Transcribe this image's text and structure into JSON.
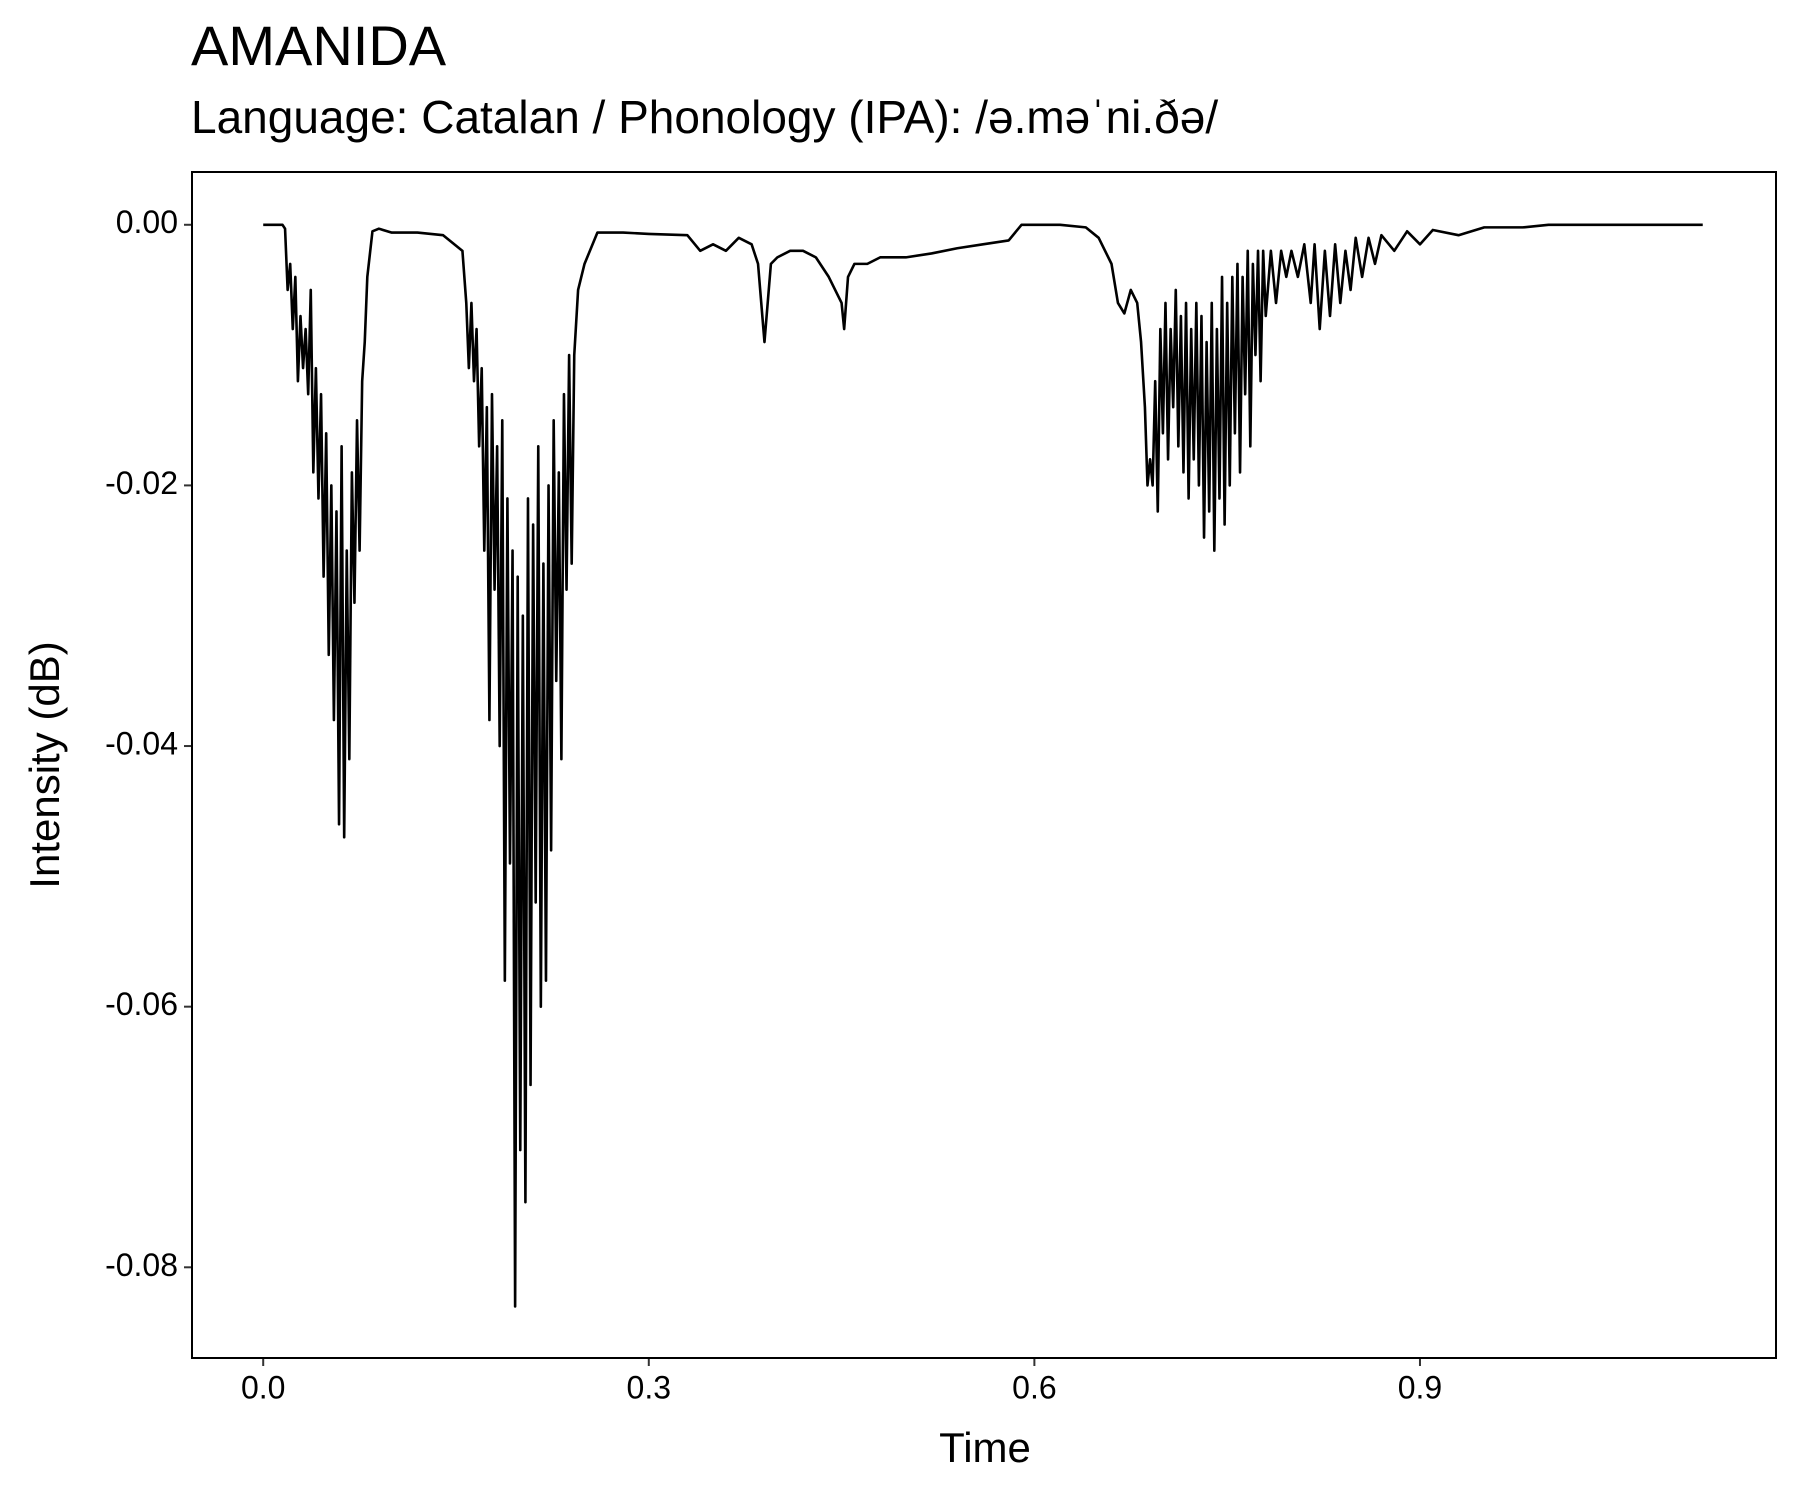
{
  "chart_data": {
    "type": "line",
    "title": "AMANIDA",
    "subtitle": "Language: Catalan / Phonology (IPA): /ə.məˈni.ðə/",
    "x_label": "Time",
    "y_label": "Intensity (dB)",
    "color": "#000000",
    "xlim": [
      -0.0554,
      1.177
    ],
    "ylim": [
      -0.08696,
      0.00405
    ],
    "xticks": [
      {
        "value": 0,
        "label": "0.0"
      },
      0.3,
      0.6,
      0.9
    ],
    "yticks": [
      {
        "value": 0,
        "label": "0.00"
      },
      {
        "value": -0.02,
        "label": "-0.02"
      },
      {
        "value": -0.04,
        "label": "-0.04"
      },
      {
        "value": -0.06,
        "label": "-0.06"
      },
      {
        "value": -0.08,
        "label": "-0.08"
      }
    ],
    "x": [
      0,
      0.015,
      0.017,
      0.019,
      0.021,
      0.023,
      0.025,
      0.027,
      0.029,
      0.031,
      0.033,
      0.035,
      0.037,
      0.039,
      0.041,
      0.043,
      0.045,
      0.047,
      0.049,
      0.051,
      0.053,
      0.055,
      0.057,
      0.059,
      0.061,
      0.063,
      0.065,
      0.067,
      0.069,
      0.071,
      0.073,
      0.075,
      0.077,
      0.079,
      0.081,
      0.085,
      0.09,
      0.1,
      0.12,
      0.14,
      0.155,
      0.158,
      0.16,
      0.162,
      0.164,
      0.166,
      0.168,
      0.17,
      0.172,
      0.174,
      0.176,
      0.178,
      0.18,
      0.182,
      0.184,
      0.186,
      0.188,
      0.19,
      0.192,
      0.194,
      0.196,
      0.198,
      0.2,
      0.202,
      0.204,
      0.206,
      0.208,
      0.21,
      0.212,
      0.214,
      0.216,
      0.218,
      0.22,
      0.222,
      0.224,
      0.226,
      0.228,
      0.23,
      0.232,
      0.234,
      0.236,
      0.238,
      0.24,
      0.242,
      0.245,
      0.25,
      0.26,
      0.28,
      0.3,
      0.33,
      0.34,
      0.35,
      0.36,
      0.37,
      0.38,
      0.385,
      0.39,
      0.395,
      0.4,
      0.41,
      0.42,
      0.43,
      0.44,
      0.45,
      0.452,
      0.455,
      0.46,
      0.47,
      0.48,
      0.5,
      0.52,
      0.54,
      0.56,
      0.58,
      0.59,
      0.62,
      0.64,
      0.65,
      0.66,
      0.665,
      0.67,
      0.675,
      0.68,
      0.683,
      0.686,
      0.688,
      0.69,
      0.692,
      0.694,
      0.696,
      0.698,
      0.7,
      0.702,
      0.704,
      0.706,
      0.708,
      0.71,
      0.712,
      0.714,
      0.716,
      0.718,
      0.72,
      0.722,
      0.724,
      0.726,
      0.728,
      0.73,
      0.732,
      0.734,
      0.736,
      0.738,
      0.74,
      0.742,
      0.744,
      0.746,
      0.748,
      0.75,
      0.752,
      0.754,
      0.756,
      0.758,
      0.76,
      0.762,
      0.764,
      0.766,
      0.768,
      0.77,
      0.772,
      0.774,
      0.776,
      0.778,
      0.78,
      0.784,
      0.788,
      0.792,
      0.796,
      0.8,
      0.805,
      0.81,
      0.815,
      0.818,
      0.822,
      0.826,
      0.83,
      0.834,
      0.838,
      0.842,
      0.846,
      0.85,
      0.855,
      0.86,
      0.865,
      0.87,
      0.88,
      0.89,
      0.9,
      0.91,
      0.93,
      0.95,
      0.98,
      1.0,
      1.12
    ],
    "values": [
      0,
      0,
      -0.0003,
      -0.005,
      -0.003,
      -0.008,
      -0.004,
      -0.012,
      -0.007,
      -0.011,
      -0.008,
      -0.013,
      -0.005,
      -0.019,
      -0.011,
      -0.021,
      -0.013,
      -0.027,
      -0.016,
      -0.033,
      -0.02,
      -0.038,
      -0.022,
      -0.046,
      -0.017,
      -0.047,
      -0.025,
      -0.041,
      -0.019,
      -0.029,
      -0.015,
      -0.025,
      -0.012,
      -0.009,
      -0.004,
      -0.0005,
      -0.0003,
      -0.0006,
      -0.0006,
      -0.0008,
      -0.002,
      -0.006,
      -0.011,
      -0.006,
      -0.012,
      -0.008,
      -0.017,
      -0.011,
      -0.025,
      -0.014,
      -0.038,
      -0.013,
      -0.028,
      -0.017,
      -0.04,
      -0.015,
      -0.058,
      -0.021,
      -0.049,
      -0.025,
      -0.083,
      -0.027,
      -0.071,
      -0.03,
      -0.075,
      -0.021,
      -0.066,
      -0.023,
      -0.052,
      -0.017,
      -0.06,
      -0.026,
      -0.058,
      -0.02,
      -0.048,
      -0.015,
      -0.035,
      -0.019,
      -0.041,
      -0.013,
      -0.028,
      -0.01,
      -0.026,
      -0.01,
      -0.005,
      -0.003,
      -0.0006,
      -0.0006,
      -0.0007,
      -0.0008,
      -0.002,
      -0.0015,
      -0.002,
      -0.001,
      -0.0015,
      -0.003,
      -0.009,
      -0.003,
      -0.0025,
      -0.002,
      -0.002,
      -0.0025,
      -0.004,
      -0.006,
      -0.008,
      -0.004,
      -0.003,
      -0.003,
      -0.0025,
      -0.0025,
      -0.0022,
      -0.0018,
      -0.0015,
      -0.0012,
      0,
      0,
      -0.0002,
      -0.001,
      -0.003,
      -0.006,
      -0.0068,
      -0.005,
      -0.006,
      -0.009,
      -0.014,
      -0.02,
      -0.018,
      -0.02,
      -0.012,
      -0.022,
      -0.008,
      -0.016,
      -0.006,
      -0.018,
      -0.008,
      -0.014,
      -0.005,
      -0.017,
      -0.007,
      -0.019,
      -0.006,
      -0.021,
      -0.008,
      -0.018,
      -0.006,
      -0.02,
      -0.007,
      -0.024,
      -0.009,
      -0.022,
      -0.006,
      -0.025,
      -0.008,
      -0.021,
      -0.004,
      -0.023,
      -0.006,
      -0.02,
      -0.004,
      -0.016,
      -0.003,
      -0.019,
      -0.004,
      -0.013,
      -0.002,
      -0.017,
      -0.003,
      -0.01,
      -0.002,
      -0.012,
      -0.002,
      -0.007,
      -0.002,
      -0.006,
      -0.002,
      -0.004,
      -0.002,
      -0.004,
      -0.0015,
      -0.006,
      -0.0015,
      -0.008,
      -0.002,
      -0.007,
      -0.0015,
      -0.006,
      -0.002,
      -0.005,
      -0.001,
      -0.004,
      -0.001,
      -0.003,
      -0.0008,
      -0.002,
      -0.0005,
      -0.0015,
      -0.0004,
      -0.0008,
      -0.0002,
      -0.0002,
      0,
      0
    ]
  }
}
